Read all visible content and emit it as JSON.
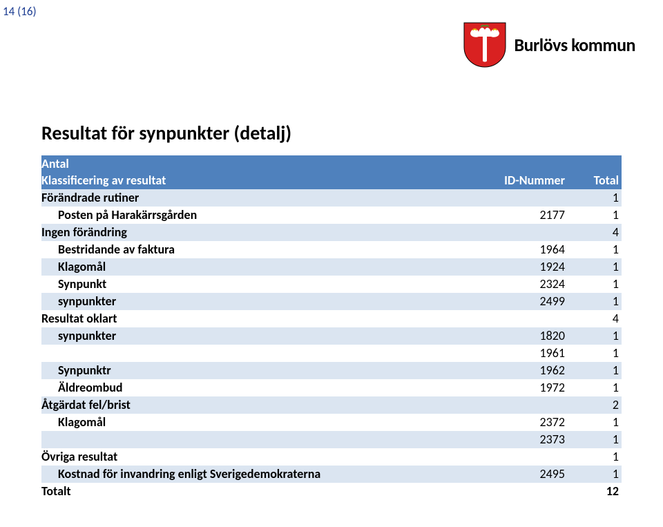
{
  "page_number": "14 (16)",
  "org": {
    "name": "Burlövs kommun"
  },
  "colors": {
    "header_bg": "#4f81bd",
    "header_fg": "#ffffff",
    "shade_bg": "#dbe5f1",
    "page_num_color": "#1f3f93"
  },
  "title": "Resultat för synpunkter (detalj)",
  "table": {
    "header_top": "Antal",
    "columns": [
      "Klassificering av resultat",
      "ID-Nummer",
      "Total"
    ],
    "rows": [
      {
        "level": 0,
        "shade": true,
        "label": "Förändrade rutiner",
        "id": "",
        "total": "1"
      },
      {
        "level": 1,
        "shade": false,
        "label": "Posten på Harakärrsgården",
        "id": "2177",
        "total": "1"
      },
      {
        "level": 0,
        "shade": true,
        "label": "Ingen förändring",
        "id": "",
        "total": "4"
      },
      {
        "level": 1,
        "shade": false,
        "label": "Bestridande av faktura",
        "id": "1964",
        "total": "1"
      },
      {
        "level": 1,
        "shade": true,
        "label": "Klagomål",
        "id": "1924",
        "total": "1"
      },
      {
        "level": 1,
        "shade": false,
        "label": "Synpunkt",
        "id": "2324",
        "total": "1"
      },
      {
        "level": 1,
        "shade": true,
        "label": "synpunkter",
        "id": "2499",
        "total": "1"
      },
      {
        "level": 0,
        "shade": false,
        "label": "Resultat oklart",
        "id": "",
        "total": "4"
      },
      {
        "level": 1,
        "shade": true,
        "label": "synpunkter",
        "id": "1820",
        "total": "1"
      },
      {
        "level": 2,
        "shade": false,
        "label": "",
        "id": "1961",
        "total": "1"
      },
      {
        "level": 1,
        "shade": true,
        "label": "Synpunktr",
        "id": "1962",
        "total": "1"
      },
      {
        "level": 1,
        "shade": false,
        "label": "Äldreombud",
        "id": "1972",
        "total": "1"
      },
      {
        "level": 0,
        "shade": true,
        "label": "Åtgärdat fel/brist",
        "id": "",
        "total": "2"
      },
      {
        "level": 1,
        "shade": false,
        "label": "Klagomål",
        "id": "2372",
        "total": "1"
      },
      {
        "level": 2,
        "shade": true,
        "label": "",
        "id": "2373",
        "total": "1"
      },
      {
        "level": 0,
        "shade": false,
        "label": "Övriga resultat",
        "id": "",
        "total": "1"
      },
      {
        "level": 1,
        "shade": true,
        "label": "Kostnad för invandring enligt Sverigedemokraterna",
        "id": "2495",
        "total": "1"
      }
    ],
    "grand_total": {
      "label": "Totalt",
      "total": "12"
    }
  }
}
